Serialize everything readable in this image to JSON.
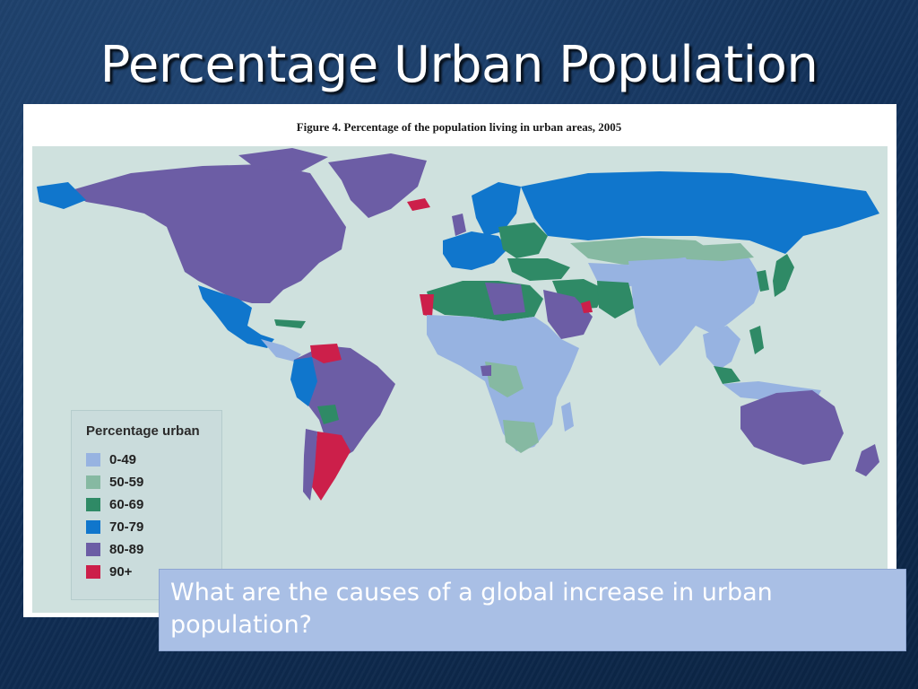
{
  "slide": {
    "title": "Percentage Urban Population",
    "question": "What are the causes of a global increase in urban population?"
  },
  "figure": {
    "caption": "Figure 4. Percentage of the population living in urban areas, 2005"
  },
  "legend": {
    "title": "Percentage urban",
    "items": [
      {
        "label": "0-49",
        "color": "#97b3e1"
      },
      {
        "label": "50-59",
        "color": "#86b9a2"
      },
      {
        "label": "60-69",
        "color": "#2f8a66"
      },
      {
        "label": "70-79",
        "color": "#1076cc"
      },
      {
        "label": "80-89",
        "color": "#6c5da5"
      },
      {
        "label": "90+",
        "color": "#cc1f4a"
      }
    ]
  },
  "colors": {
    "ocean": "#cfe1de",
    "background": "#12315a",
    "title_text": "#ffffff"
  }
}
